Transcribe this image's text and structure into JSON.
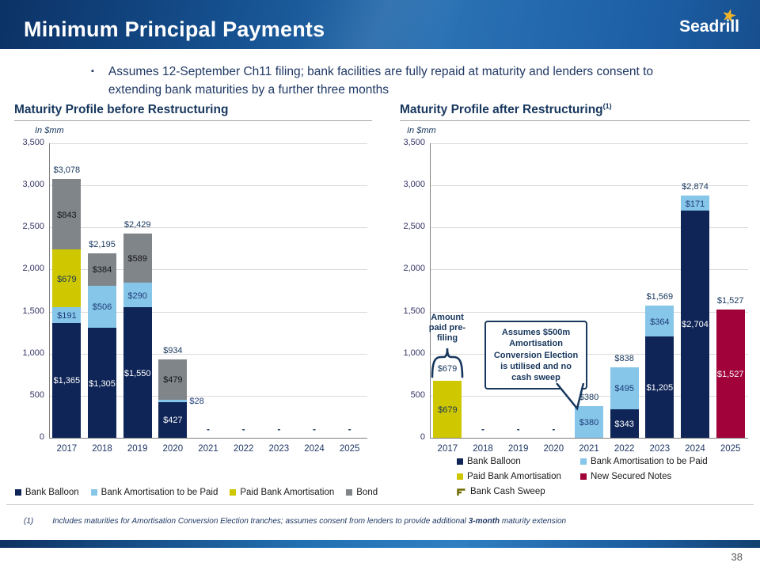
{
  "header": {
    "title": "Minimum Principal Payments",
    "logo_text": "Seadrill",
    "logo_star": "★"
  },
  "bullet": {
    "marker": "▪",
    "text": "Assumes 12-September Ch11 filing; bank facilities are fully repaid at maturity and lenders consent to extending bank maturities by a further three months"
  },
  "palette": {
    "series": {
      "bank_balloon": "#0F2557",
      "bank_amort": "#85C6E9",
      "paid_amort": "#CFC700",
      "bond": "#80858A",
      "new_secured": "#A00239",
      "cash_sweep": "#6E6A00"
    },
    "label_colors": {
      "bank_balloon": "#FFFFFF",
      "bank_amort": "#1F3C78",
      "paid_amort": "#17375D",
      "bond": "#161616",
      "new_secured": "#FFFFFF"
    }
  },
  "chart_data": [
    {
      "type": "bar",
      "stacked": true,
      "title": "Maturity Profile before Restructuring",
      "title_sup": "",
      "unit_label": "In $mm",
      "ylim": [
        0,
        3500
      ],
      "ytick_step": 500,
      "ytick_labels": [
        "3,500",
        "3,000",
        "2,500",
        "2,000",
        "1,500",
        "1,000",
        "500",
        "0"
      ],
      "grid": true,
      "legend_position": "bottom",
      "legend": [
        {
          "key": "bank_balloon",
          "label": "Bank Balloon"
        },
        {
          "key": "bank_amort",
          "label": "Bank Amortisation to be Paid"
        },
        {
          "key": "paid_amort",
          "label": "Paid Bank Amortisation"
        },
        {
          "key": "bond",
          "label": "Bond"
        }
      ],
      "columns": [
        {
          "x": "2017",
          "total": "$3,078",
          "segments": [
            {
              "key": "bank_balloon",
              "value": 1365,
              "label": "$1,365"
            },
            {
              "key": "bank_amort",
              "value": 191,
              "label": "$191"
            },
            {
              "key": "paid_amort",
              "value": 679,
              "label": "$679"
            },
            {
              "key": "bond",
              "value": 843,
              "label": "$843"
            }
          ]
        },
        {
          "x": "2018",
          "total": "$2,195",
          "segments": [
            {
              "key": "bank_balloon",
              "value": 1305,
              "label": "$1,305"
            },
            {
              "key": "bank_amort",
              "value": 506,
              "label": "$506"
            },
            {
              "key": "bond",
              "value": 384,
              "label": "$384"
            }
          ]
        },
        {
          "x": "2019",
          "total": "$2,429",
          "segments": [
            {
              "key": "bank_balloon",
              "value": 1550,
              "label": "$1,550"
            },
            {
              "key": "bank_amort",
              "value": 290,
              "label": "$290"
            },
            {
              "key": "bond",
              "value": 589,
              "label": "$589"
            }
          ]
        },
        {
          "x": "2020",
          "total": "$934",
          "segments": [
            {
              "key": "bank_balloon",
              "value": 427,
              "label": "$427"
            },
            {
              "key": "bank_amort",
              "value": 28,
              "label": "$28",
              "label_outside": true
            },
            {
              "key": "bond",
              "value": 479,
              "label": "$479"
            }
          ]
        },
        {
          "x": "2021",
          "dash": "-",
          "segments": []
        },
        {
          "x": "2022",
          "dash": "-",
          "segments": []
        },
        {
          "x": "2023",
          "dash": "-",
          "segments": []
        },
        {
          "x": "2024",
          "dash": "-",
          "segments": []
        },
        {
          "x": "2025",
          "dash": "-",
          "segments": []
        }
      ]
    },
    {
      "type": "bar",
      "stacked": true,
      "title": "Maturity Profile after Restructuring",
      "title_sup": "(1)",
      "unit_label": "In $mm",
      "ylim": [
        0,
        3500
      ],
      "ytick_step": 500,
      "ytick_labels": [
        "3,500",
        "3,000",
        "2,500",
        "2,000",
        "1,500",
        "1,000",
        "500",
        "0"
      ],
      "grid": true,
      "legend_position": "bottom",
      "legend": [
        {
          "key": "bank_balloon",
          "label": "Bank Balloon"
        },
        {
          "key": "bank_amort",
          "label": "Bank Amortisation to be Paid"
        },
        {
          "key": "paid_amort",
          "label": "Paid Bank Amortisation"
        },
        {
          "key": "new_secured",
          "label": "New Secured Notes"
        },
        {
          "key": "cash_sweep",
          "label": "Bank Cash Sweep",
          "icon": "brace"
        }
      ],
      "columns": [
        {
          "x": "2017",
          "segments": [
            {
              "key": "paid_amort",
              "value": 679,
              "label": "$679"
            }
          ]
        },
        {
          "x": "2018",
          "dash": "-",
          "segments": []
        },
        {
          "x": "2019",
          "dash": "-",
          "segments": []
        },
        {
          "x": "2020",
          "dash": "-",
          "segments": []
        },
        {
          "x": "2021",
          "total": "$380",
          "segments": [
            {
              "key": "bank_amort",
              "value": 380,
              "label": "$380"
            }
          ]
        },
        {
          "x": "2022",
          "total": "$838",
          "segments": [
            {
              "key": "bank_balloon",
              "value": 343,
              "label": "$343"
            },
            {
              "key": "bank_amort",
              "value": 495,
              "label": "$495"
            }
          ]
        },
        {
          "x": "2023",
          "total": "$1,569",
          "segments": [
            {
              "key": "bank_balloon",
              "value": 1205,
              "label": "$1,205"
            },
            {
              "key": "bank_amort",
              "value": 364,
              "label": "$364"
            }
          ]
        },
        {
          "x": "2024",
          "total": "$2,874",
          "segments": [
            {
              "key": "bank_balloon",
              "value": 2704,
              "label": "$2,704"
            },
            {
              "key": "bank_amort",
              "value": 171,
              "label": "$171"
            }
          ]
        },
        {
          "x": "2025",
          "total": "$1,527",
          "segments": [
            {
              "key": "new_secured",
              "value": 1527,
              "label": "$1,527"
            }
          ]
        }
      ]
    }
  ],
  "annotations": {
    "pre_filing": {
      "label": "Amount paid pre-filing",
      "amount": "$679"
    },
    "callout": {
      "text": "Assumes $500m Amortisation Conversion Election is utilised and no cash sweep"
    }
  },
  "footnote": {
    "marker": "(1)",
    "text_pre": "Includes maturities for Amortisation Conversion Election tranches; assumes consent from lenders to provide additional ",
    "text_bold": "3-month",
    "text_post": " maturity extension"
  },
  "page_number": "38"
}
